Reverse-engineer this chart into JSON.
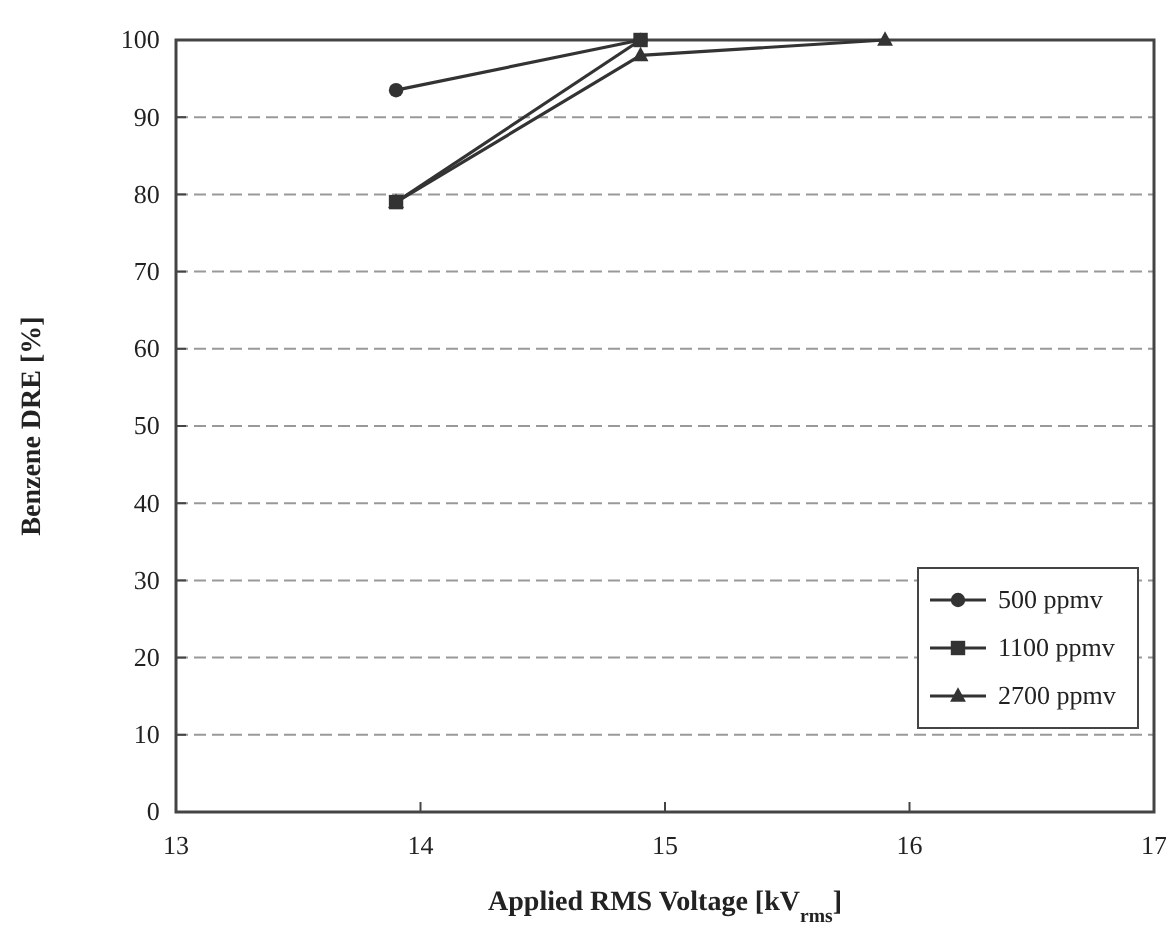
{
  "chart_data": {
    "type": "line",
    "xlabel": "Applied RMS Voltage [kV$_{rms}$]",
    "ylabel": "Benzene DRE [%]",
    "xlim": [
      13,
      17
    ],
    "xticks": [
      13,
      14,
      15,
      16,
      17
    ],
    "ylim": [
      0,
      100
    ],
    "yticks": [
      0,
      10,
      20,
      30,
      40,
      50,
      60,
      70,
      80,
      90,
      100
    ],
    "grid": "y",
    "legend": "bottom right",
    "series": [
      {
        "name": "500 ppmv",
        "color": "#333333",
        "marker": "circle",
        "x": [
          13.9,
          14.9
        ],
        "values": [
          93.5,
          100
        ]
      },
      {
        "name": "1100 ppmv",
        "color": "#333333",
        "marker": "square",
        "x": [
          13.9,
          14.9
        ],
        "values": [
          79,
          100
        ]
      },
      {
        "name": "2700 ppmv",
        "color": "#333333",
        "marker": "triangle",
        "x": [
          13.9,
          14.9,
          15.9
        ],
        "values": [
          79,
          98,
          100
        ]
      }
    ]
  }
}
